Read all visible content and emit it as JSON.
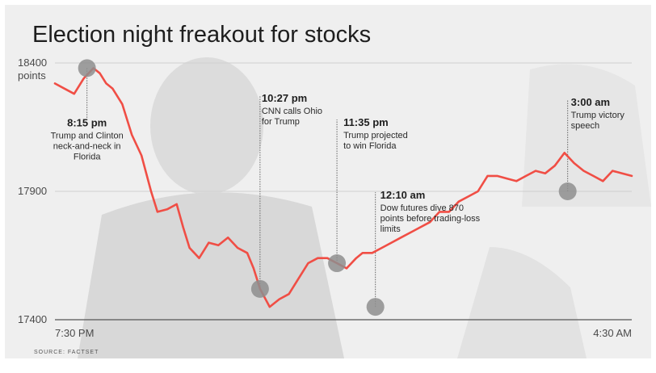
{
  "chart_data": {
    "type": "line",
    "title": "Election night freakout for stocks",
    "ylabel": "points",
    "ylim": [
      17400,
      18400
    ],
    "yticks": [
      {
        "value": 18400,
        "label": "18400"
      },
      {
        "value": 17900,
        "label": "17900"
      },
      {
        "value": 17400,
        "label": "17400"
      }
    ],
    "y_unit_label": "points",
    "xlim": [
      0,
      9
    ],
    "xtick_labels": [
      {
        "x": 0,
        "label": "7:30 PM"
      },
      {
        "x": 9,
        "label": "4:30 AM"
      }
    ],
    "series": [
      {
        "name": "Dow futures",
        "color": "#f04e45",
        "x": [
          0,
          0.15,
          0.3,
          0.45,
          0.6,
          0.7,
          0.8,
          0.9,
          1.05,
          1.2,
          1.35,
          1.5,
          1.6,
          1.75,
          1.9,
          2.0,
          2.1,
          2.25,
          2.4,
          2.55,
          2.7,
          2.85,
          3.0,
          3.1,
          3.2,
          3.35,
          3.5,
          3.65,
          3.8,
          3.95,
          4.1,
          4.25,
          4.4,
          4.55,
          4.7,
          4.8,
          4.95,
          5.1,
          5.25,
          5.4,
          5.55,
          5.7,
          5.85,
          6.0,
          6.15,
          6.3,
          6.45,
          6.6,
          6.75,
          6.9,
          7.05,
          7.2,
          7.35,
          7.5,
          7.65,
          7.8,
          7.95,
          8.1,
          8.25,
          8.4,
          8.55,
          8.7,
          8.85,
          9.0
        ],
        "values": [
          18320,
          18300,
          18280,
          18340,
          18380,
          18360,
          18320,
          18300,
          18240,
          18120,
          18040,
          17900,
          17820,
          17830,
          17850,
          17760,
          17680,
          17640,
          17700,
          17690,
          17720,
          17680,
          17660,
          17600,
          17520,
          17450,
          17480,
          17500,
          17560,
          17620,
          17640,
          17640,
          17620,
          17600,
          17640,
          17660,
          17660,
          17680,
          17700,
          17720,
          17740,
          17760,
          17780,
          17820,
          17820,
          17860,
          17880,
          17900,
          17960,
          17960,
          17950,
          17940,
          17960,
          17980,
          17970,
          18000,
          18050,
          18010,
          17980,
          17960,
          17940,
          17980,
          17970,
          17960
        ]
      }
    ],
    "annotations": [
      {
        "x": 0.5,
        "y": 18380,
        "time": "8:15 pm",
        "lines": [
          "Trump and Clinton",
          "neck-and-neck in",
          "Florida"
        ]
      },
      {
        "x": 3.2,
        "y": 17520,
        "time": "10:27 pm",
        "lines": [
          "CNN calls Ohio",
          "for Trump"
        ]
      },
      {
        "x": 4.4,
        "y": 17620,
        "time": "11:35 pm",
        "lines": [
          "Trump projected",
          "to win Florida"
        ]
      },
      {
        "x": 5.0,
        "y": 17450,
        "time": "12:10 am",
        "lines": [
          "Dow futures dive 870",
          "points before trading-loss",
          "limits"
        ]
      },
      {
        "x": 8.0,
        "y": 17900,
        "time": "3:00 am",
        "lines": [
          "Trump victory",
          "speech"
        ]
      }
    ],
    "grid": true
  },
  "source": "SOURCE: FACTSET"
}
